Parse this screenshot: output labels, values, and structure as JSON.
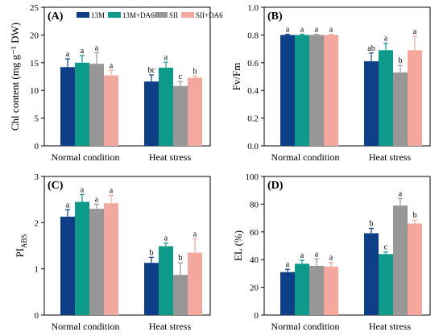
{
  "legend": {
    "entries": [
      "13M",
      "13M+DA6",
      "SII",
      "SII+DA6"
    ],
    "colors": [
      "#0d3f86",
      "#0e9a8a",
      "#979797",
      "#f4a79c"
    ]
  },
  "chart_data": [
    {
      "type": "bar",
      "panel_label": "(A)",
      "categories": [
        "Normal condition",
        "Heat stress"
      ],
      "ylabel": "Chl content (mg g⁻¹ DW)",
      "ylim": [
        0,
        25
      ],
      "yticks": [
        "0",
        "5",
        "10",
        "15",
        "20",
        "25"
      ],
      "tick_values": [
        0,
        5,
        10,
        15,
        20,
        25
      ],
      "series": [
        {
          "name": "13M",
          "values": [
            14.2,
            11.6
          ],
          "errors": [
            1.5,
            1.2
          ],
          "letters": [
            "a",
            "bc"
          ]
        },
        {
          "name": "13M+DA6",
          "values": [
            15.0,
            14.1
          ],
          "errors": [
            1.3,
            1.0
          ],
          "letters": [
            "a",
            "a"
          ]
        },
        {
          "name": "SII",
          "values": [
            14.8,
            10.8
          ],
          "errors": [
            2.0,
            0.8
          ],
          "letters": [
            "a",
            "c"
          ]
        },
        {
          "name": "SII+DA6",
          "values": [
            12.7,
            12.3
          ],
          "errors": [
            0.9,
            0.3
          ],
          "letters": [
            "a",
            "b"
          ]
        }
      ]
    },
    {
      "type": "bar",
      "panel_label": "(B)",
      "categories": [
        "Normal condition",
        "Heat stress"
      ],
      "ylabel": "Fv/Fm",
      "ylim": [
        0,
        1.0
      ],
      "yticks": [
        "0.0",
        "0.2",
        "0.4",
        "0.6",
        "0.8",
        "1.0"
      ],
      "tick_values": [
        0,
        0.2,
        0.4,
        0.6,
        0.8,
        1.0
      ],
      "series": [
        {
          "name": "13M",
          "values": [
            0.8,
            0.61
          ],
          "errors": [
            0.005,
            0.06
          ],
          "letters": [
            "a",
            "ab"
          ]
        },
        {
          "name": "13M+DA6",
          "values": [
            0.8,
            0.69
          ],
          "errors": [
            0.005,
            0.05
          ],
          "letters": [
            "a",
            "a"
          ]
        },
        {
          "name": "SII",
          "values": [
            0.8,
            0.53
          ],
          "errors": [
            0.005,
            0.05
          ],
          "letters": [
            "a",
            "b"
          ]
        },
        {
          "name": "SII+DA6",
          "values": [
            0.8,
            0.69
          ],
          "errors": [
            0.005,
            0.1
          ],
          "letters": [
            "a",
            "a"
          ]
        }
      ]
    },
    {
      "type": "bar",
      "panel_label": "(C)",
      "categories": [
        "Normal condition",
        "Heat stress"
      ],
      "ylabel": "PI",
      "ylabel_sub": "ABS",
      "ylim": [
        0,
        3
      ],
      "yticks": [
        "0",
        "1",
        "2",
        "3"
      ],
      "tick_values": [
        0,
        1,
        2,
        3
      ],
      "series": [
        {
          "name": "13M",
          "values": [
            2.13,
            1.13
          ],
          "errors": [
            0.15,
            0.12
          ],
          "letters": [
            "a",
            "b"
          ]
        },
        {
          "name": "13M+DA6",
          "values": [
            2.45,
            1.49
          ],
          "errors": [
            0.16,
            0.07
          ],
          "letters": [
            "a",
            "a"
          ]
        },
        {
          "name": "SII",
          "values": [
            2.3,
            0.87
          ],
          "errors": [
            0.1,
            0.26
          ],
          "letters": [
            "a",
            "b"
          ]
        },
        {
          "name": "SII+DA6",
          "values": [
            2.42,
            1.35
          ],
          "errors": [
            0.17,
            0.3
          ],
          "letters": [
            "a",
            "a"
          ]
        }
      ]
    },
    {
      "type": "bar",
      "panel_label": "(D)",
      "categories": [
        "Normal condition",
        "Heat stress"
      ],
      "ylabel": "EL (%)",
      "ylim": [
        0,
        100
      ],
      "yticks": [
        "0",
        "20",
        "40",
        "60",
        "80",
        "100"
      ],
      "tick_values": [
        0,
        20,
        40,
        60,
        80,
        100
      ],
      "series": [
        {
          "name": "13M",
          "values": [
            31,
            59
          ],
          "errors": [
            2.0,
            3.5
          ],
          "letters": [
            "a",
            "b"
          ]
        },
        {
          "name": "13M+DA6",
          "values": [
            37,
            44
          ],
          "errors": [
            2.5,
            1.5
          ],
          "letters": [
            "a",
            "c"
          ]
        },
        {
          "name": "SII",
          "values": [
            35.5,
            79
          ],
          "errors": [
            5.0,
            5.0
          ],
          "letters": [
            "a",
            "a"
          ]
        },
        {
          "name": "SII+DA6",
          "values": [
            35,
            66
          ],
          "errors": [
            3.0,
            2.5
          ],
          "letters": [
            "a",
            "b"
          ]
        }
      ]
    }
  ]
}
